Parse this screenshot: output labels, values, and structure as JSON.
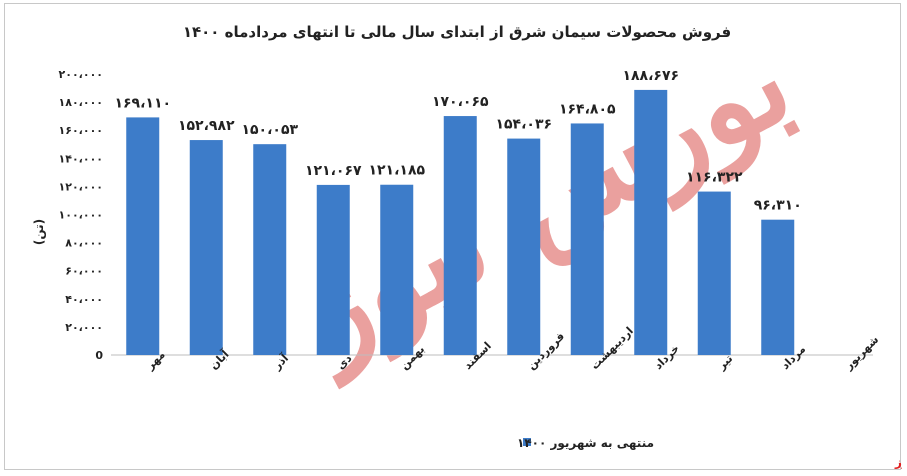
{
  "chart_data": {
    "type": "bar",
    "title": "فروش محصولات سیمان شرق از ابتدای سال مالی تا انتهای مردادماه ۱۴۰۰",
    "ylabel": "(تن)",
    "xlabel": "",
    "ylim": [
      0,
      200000
    ],
    "yticks": [
      0,
      20000,
      40000,
      60000,
      80000,
      100000,
      120000,
      140000,
      160000,
      180000,
      200000
    ],
    "ytick_labels": [
      "0",
      "۲۰،۰۰۰",
      "۴۰،۰۰۰",
      "۶۰،۰۰۰",
      "۸۰،۰۰۰",
      "۱۰۰،۰۰۰",
      "۱۲۰،۰۰۰",
      "۱۴۰،۰۰۰",
      "۱۶۰،۰۰۰",
      "۱۸۰،۰۰۰",
      "۲۰۰،۰۰۰"
    ],
    "categories": [
      "مهر",
      "آبان",
      "آذر",
      "دی",
      "بهمن",
      "اسفند",
      "فروردین",
      "اردیبهشت",
      "خرداد",
      "تیر",
      "مرداد",
      "شهریور"
    ],
    "series": [
      {
        "name": "منتهی به شهریور ۱۴۰۰",
        "values": [
          169110,
          152982,
          150053,
          121067,
          121185,
          170065,
          154036,
          164805,
          188676,
          116322,
          96310,
          null
        ],
        "value_labels": [
          "۱۶۹،۱۱۰",
          "۱۵۲،۹۸۲",
          "۱۵۰،۰۵۳",
          "۱۲۱،۰۶۷",
          "۱۲۱،۱۸۵",
          "۱۷۰،۰۶۵",
          "۱۵۴،۰۳۶",
          "۱۶۴،۸۰۵",
          "۱۸۸،۶۷۶",
          "۱۱۶،۳۲۲",
          "۹۶،۳۱۰",
          ""
        ],
        "color": "#3d7cc9"
      }
    ],
    "grid": false,
    "legend_position": "bottom"
  },
  "watermark_text": "بورس نیوز",
  "brand_text": "بورس نیوز",
  "colors": {
    "bar": "#3d7cc9",
    "watermark": "#d9534f",
    "brand": "#e02020"
  }
}
